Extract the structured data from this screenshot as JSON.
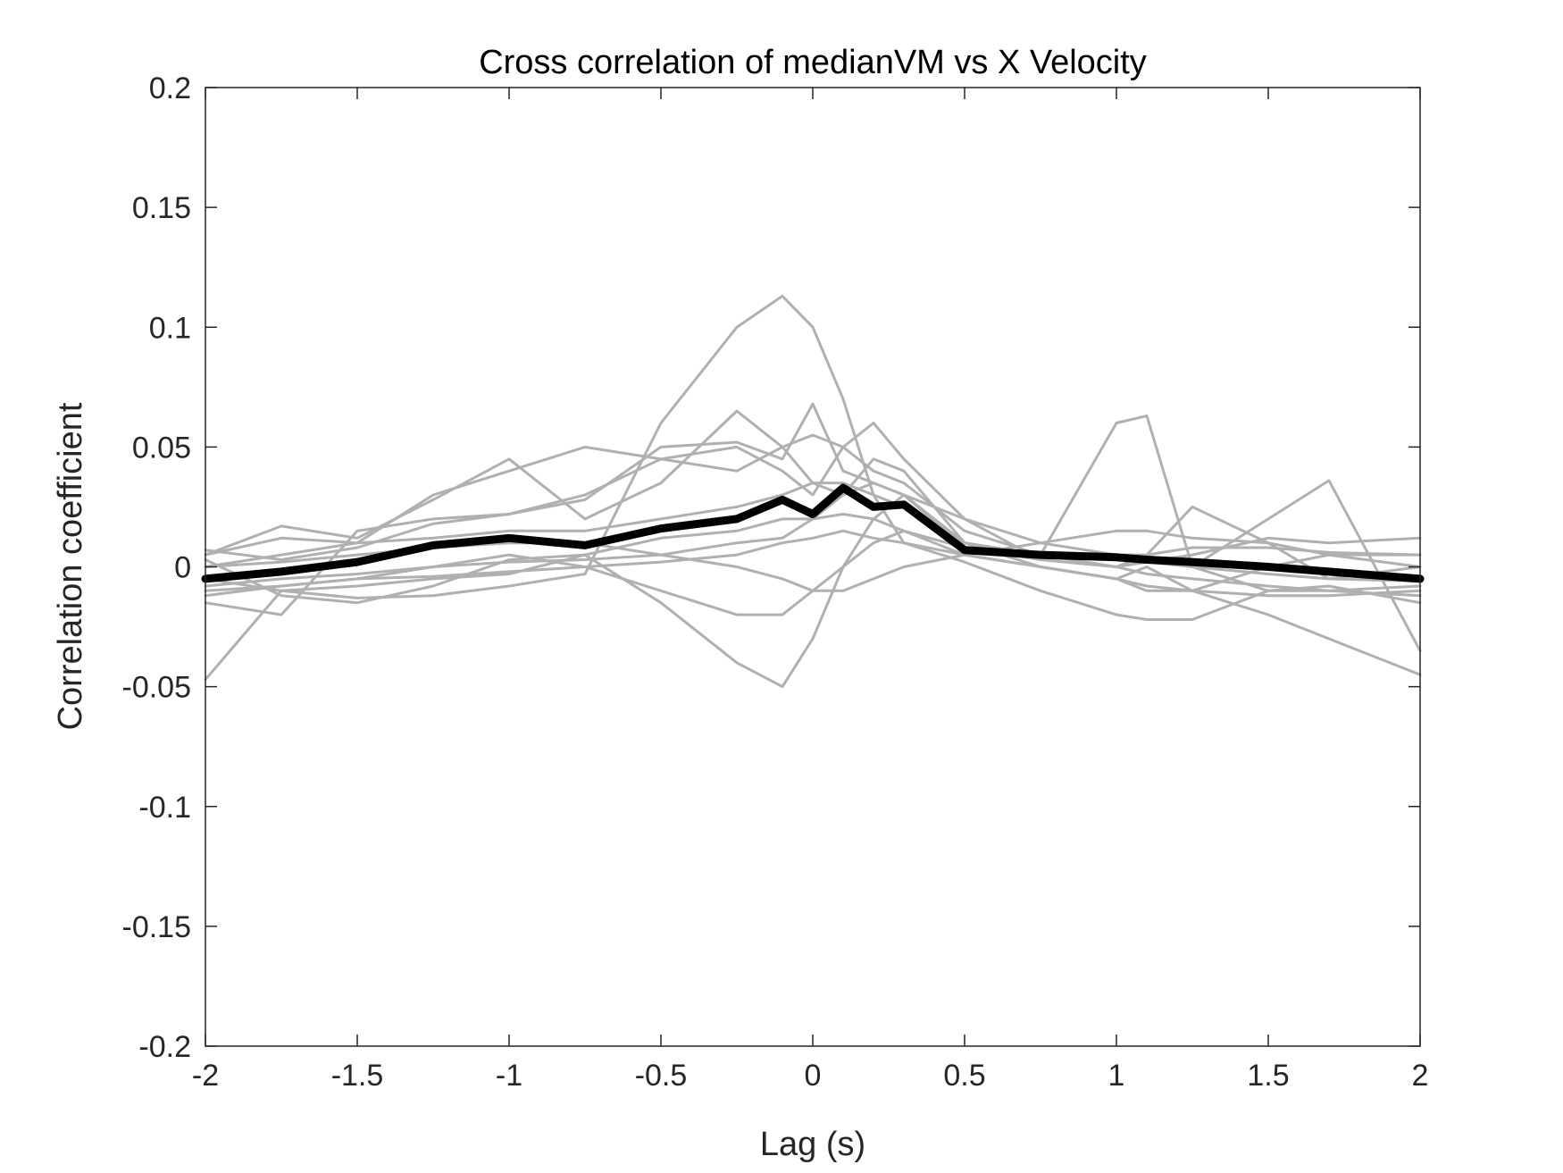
{
  "chart_data": {
    "type": "line",
    "title": "Cross correlation of medianVM vs X Velocity",
    "xlabel": "Lag (s)",
    "ylabel": "Correlation coefficient",
    "xlim": [
      -2,
      2
    ],
    "ylim": [
      -0.2,
      0.2
    ],
    "xticks": [
      -2,
      -1.5,
      -1,
      -0.5,
      0,
      0.5,
      1,
      1.5,
      2
    ],
    "xtick_labels": [
      "-2",
      "-1.5",
      "-1",
      "-0.5",
      "0",
      "0.5",
      "1",
      "1.5",
      "2"
    ],
    "yticks": [
      -0.2,
      -0.15,
      -0.1,
      -0.05,
      0,
      0.05,
      0.1,
      0.15,
      0.2
    ],
    "ytick_labels": [
      "-0.2",
      "-0.15",
      "-0.1",
      "-0.05",
      "0",
      "0.05",
      "0.1",
      "0.15",
      "0.2"
    ],
    "grid": false,
    "colors": {
      "individual": "#b0b0b0",
      "mean": "#000000",
      "axes": "#262626"
    },
    "x": [
      -2,
      -1.75,
      -1.5,
      -1.25,
      -1,
      -0.75,
      -0.5,
      -0.25,
      -0.1,
      0,
      0.1,
      0.2,
      0.3,
      0.5,
      0.75,
      1,
      1.1,
      1.25,
      1.5,
      1.7,
      2
    ],
    "series": [
      {
        "role": "individual",
        "values": [
          -0.047,
          -0.01,
          -0.013,
          -0.012,
          -0.008,
          -0.003,
          0.06,
          0.1,
          0.113,
          0.1,
          0.07,
          0.03,
          0.01,
          0.002,
          -0.01,
          -0.02,
          -0.022,
          -0.022,
          -0.01,
          -0.008,
          -0.015
        ]
      },
      {
        "role": "individual",
        "values": [
          0.003,
          -0.012,
          -0.015,
          -0.008,
          0.003,
          0.005,
          -0.015,
          -0.04,
          -0.05,
          -0.03,
          0.0,
          0.02,
          0.03,
          0.01,
          0.005,
          0.06,
          0.063,
          0.0,
          0.02,
          0.036,
          -0.035
        ]
      },
      {
        "role": "individual",
        "values": [
          0.005,
          0.017,
          0.012,
          0.028,
          0.045,
          0.02,
          0.035,
          0.065,
          0.05,
          0.035,
          0.03,
          0.045,
          0.04,
          0.01,
          0.0,
          -0.005,
          0.0,
          -0.01,
          -0.02,
          -0.03,
          -0.045
        ]
      },
      {
        "role": "individual",
        "values": [
          -0.015,
          -0.02,
          0.015,
          0.02,
          0.022,
          0.03,
          0.045,
          0.05,
          0.04,
          0.03,
          0.05,
          0.06,
          0.045,
          0.02,
          0.003,
          0.0,
          0.005,
          0.025,
          0.01,
          -0.005,
          0.0
        ]
      },
      {
        "role": "individual",
        "values": [
          0.0,
          0.005,
          0.01,
          0.03,
          0.04,
          0.05,
          0.045,
          0.04,
          0.05,
          0.055,
          0.05,
          0.04,
          0.035,
          0.015,
          0.005,
          0.0,
          0.002,
          0.005,
          0.012,
          0.01,
          0.012
        ]
      },
      {
        "role": "individual",
        "values": [
          0.007,
          0.003,
          0.008,
          0.018,
          0.022,
          0.028,
          0.05,
          0.052,
          0.045,
          0.068,
          0.04,
          0.035,
          0.03,
          0.02,
          0.01,
          0.005,
          0.003,
          0.0,
          -0.01,
          -0.01,
          -0.012
        ]
      },
      {
        "role": "individual",
        "values": [
          -0.01,
          -0.008,
          -0.005,
          0.0,
          0.005,
          0.0,
          -0.01,
          -0.02,
          -0.02,
          -0.01,
          0.0,
          0.01,
          0.015,
          0.005,
          0.0,
          -0.005,
          -0.01,
          -0.01,
          0.0,
          0.005,
          0.005
        ]
      },
      {
        "role": "individual",
        "values": [
          -0.005,
          -0.01,
          -0.008,
          -0.005,
          -0.003,
          0.005,
          0.012,
          0.015,
          0.02,
          0.02,
          0.03,
          0.035,
          0.03,
          0.008,
          0.003,
          0.0,
          -0.003,
          -0.005,
          -0.008,
          -0.01,
          -0.008
        ]
      },
      {
        "role": "individual",
        "values": [
          0.005,
          0.012,
          0.01,
          0.012,
          0.015,
          0.015,
          0.02,
          0.025,
          0.03,
          0.035,
          0.035,
          0.03,
          0.025,
          0.01,
          0.005,
          0.005,
          0.005,
          0.008,
          0.008,
          0.006,
          0.005
        ]
      },
      {
        "role": "individual",
        "values": [
          -0.012,
          -0.008,
          -0.005,
          -0.004,
          -0.002,
          0.0,
          0.002,
          0.005,
          0.01,
          0.012,
          0.015,
          0.012,
          0.01,
          0.005,
          0.0,
          -0.005,
          -0.008,
          -0.01,
          -0.012,
          -0.012,
          -0.01
        ]
      },
      {
        "role": "individual",
        "values": [
          0.0,
          0.002,
          0.005,
          0.008,
          0.01,
          0.01,
          0.005,
          0.0,
          -0.005,
          -0.01,
          -0.01,
          -0.005,
          0.0,
          0.005,
          0.01,
          0.015,
          0.015,
          0.012,
          0.01,
          0.005,
          0.0
        ]
      },
      {
        "role": "individual",
        "values": [
          -0.008,
          -0.005,
          -0.003,
          0.0,
          0.002,
          0.003,
          0.005,
          0.01,
          0.012,
          0.02,
          0.022,
          0.02,
          0.015,
          0.008,
          0.005,
          0.003,
          0.002,
          0.0,
          -0.003,
          -0.005,
          -0.006
        ]
      },
      {
        "role": "mean",
        "values": [
          -0.005,
          -0.002,
          0.002,
          0.009,
          0.012,
          0.009,
          0.016,
          0.02,
          0.028,
          0.022,
          0.033,
          0.025,
          0.026,
          0.007,
          0.005,
          0.004,
          0.003,
          0.002,
          0.0,
          -0.002,
          -0.005
        ]
      }
    ]
  }
}
